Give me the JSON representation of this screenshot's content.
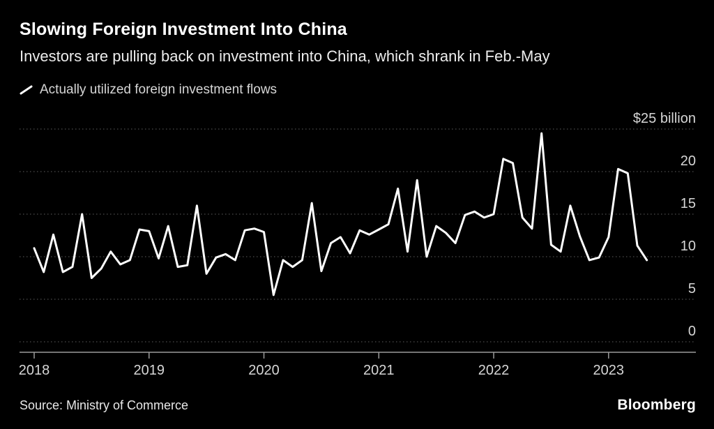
{
  "header": {
    "title": "Slowing Foreign Investment Into China",
    "subtitle": "Investors are pulling back on investment into China, which shrank in Feb.-May"
  },
  "legend": {
    "label": "Actually utilized foreign investment flows"
  },
  "footer": {
    "source": "Source: Ministry of Commerce",
    "brand": "Bloomberg"
  },
  "chart_data": {
    "type": "line",
    "title": "Slowing Foreign Investment Into China",
    "subtitle": "Investors are pulling back on investment into China, which shrank in Feb.-May",
    "ylabel": "",
    "unit_label": "$25 billion",
    "ylim": [
      0,
      25
    ],
    "grid": "dotted-horizontal",
    "legend_position": "top-left",
    "line_color": "#ffffff",
    "background_color": "#000000",
    "x_frequency": "monthly",
    "x_start": "2018-01",
    "x_ticks": [
      "2018",
      "2019",
      "2020",
      "2021",
      "2022",
      "2023"
    ],
    "y_ticks": [
      {
        "value": 0,
        "label": "0"
      },
      {
        "value": 5,
        "label": "5"
      },
      {
        "value": 10,
        "label": "10"
      },
      {
        "value": 15,
        "label": "15"
      },
      {
        "value": 20,
        "label": "20"
      },
      {
        "value": 25,
        "label": "$25 billion"
      }
    ],
    "series": [
      {
        "name": "Actually utilized foreign investment flows",
        "values": [
          11.0,
          8.2,
          12.6,
          8.2,
          8.8,
          15.0,
          7.5,
          8.6,
          10.6,
          9.1,
          9.6,
          13.2,
          13.0,
          9.8,
          13.6,
          8.8,
          9.0,
          16.0,
          8.0,
          9.9,
          10.3,
          9.6,
          13.1,
          13.3,
          12.9,
          5.5,
          9.6,
          8.8,
          9.6,
          16.3,
          8.3,
          11.6,
          12.3,
          10.4,
          13.1,
          12.6,
          13.2,
          13.8,
          18.0,
          10.6,
          19.0,
          10.0,
          13.6,
          12.8,
          11.6,
          14.9,
          15.3,
          14.6,
          15.0,
          21.5,
          21.0,
          14.6,
          13.3,
          24.5,
          11.4,
          10.6,
          16.0,
          12.4,
          9.6,
          9.9,
          12.3,
          20.3,
          19.8,
          11.3,
          9.6
        ]
      }
    ]
  }
}
